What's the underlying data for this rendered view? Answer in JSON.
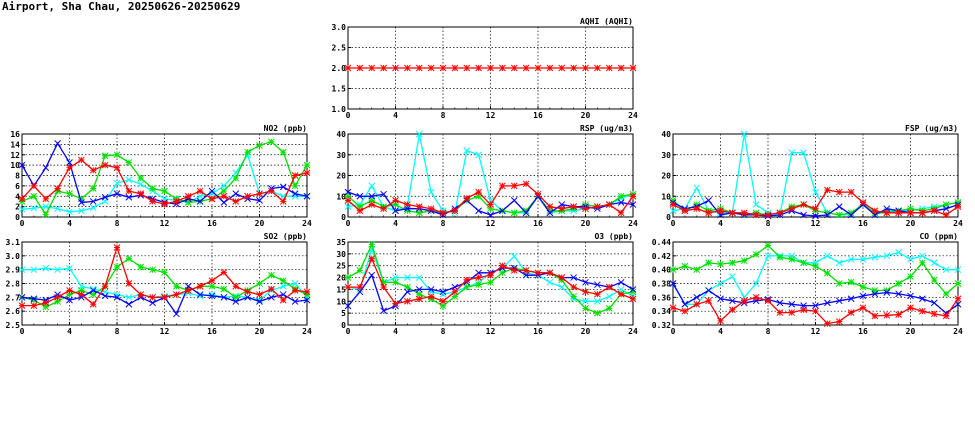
{
  "page_title": "Airport, Sha Chau, 20250626-20250629",
  "colors": {
    "cyan": "#00ffff",
    "green": "#00e000",
    "blue": "#0000ff",
    "red": "#ff0000",
    "darkred": "#800000"
  },
  "chart_data": [
    {
      "id": "aqhi",
      "type": "line",
      "title": "AQHI (AQHI)",
      "xlim": [
        0,
        24
      ],
      "x_ticks": [
        0,
        4,
        8,
        12,
        16,
        20,
        24
      ],
      "ylim": [
        1.0,
        3.0
      ],
      "y_ticks": [
        1.0,
        1.5,
        2.0,
        2.5,
        3.0
      ],
      "y_tick_labels": [
        "1.0",
        "1.5",
        "2.0",
        "2.5",
        "3.0"
      ],
      "grid": true,
      "series": [
        {
          "color": "red",
          "marker": "*",
          "values": [
            2,
            2,
            2,
            2,
            2,
            2,
            2,
            2,
            2,
            2,
            2,
            2,
            2,
            2,
            2,
            2,
            2,
            2,
            2,
            2,
            2,
            2,
            2,
            2,
            2
          ]
        }
      ]
    },
    {
      "id": "no2",
      "type": "line",
      "title": "NO2 (ppb)",
      "xlim": [
        0,
        24
      ],
      "x_ticks": [
        0,
        4,
        8,
        12,
        16,
        20,
        24
      ],
      "ylim": [
        0,
        16
      ],
      "y_ticks": [
        0,
        2,
        4,
        6,
        8,
        10,
        12,
        14,
        16
      ],
      "y_tick_labels": [
        "0",
        "2",
        "4",
        "6",
        "8",
        "10",
        "12",
        "14",
        "16"
      ],
      "grid": true,
      "series": [
        {
          "color": "cyan",
          "marker": "x",
          "values": [
            1.5,
            1.7,
            2.0,
            1.6,
            1.0,
            1.2,
            1.8,
            3.0,
            6.5,
            7.2,
            6.3,
            5.0,
            3.5,
            3.2,
            2.8,
            4.0,
            4.5,
            6.0,
            8.5,
            12.0,
            4.5,
            5.0,
            4.0,
            4.0,
            4.0
          ]
        },
        {
          "color": "green",
          "marker": "*",
          "values": [
            3.0,
            4.0,
            0.5,
            5.0,
            4.5,
            3.5,
            5.5,
            11.8,
            12.0,
            10.5,
            7.5,
            5.5,
            5.0,
            3.5,
            2.8,
            3.0,
            3.5,
            5.0,
            7.5,
            12.5,
            13.8,
            14.5,
            12.5,
            6.0,
            10.0
          ]
        },
        {
          "color": "blue",
          "marker": "x",
          "values": [
            10.0,
            6.0,
            9.5,
            14.2,
            10.5,
            2.8,
            3.0,
            3.8,
            4.5,
            3.8,
            4.2,
            3.5,
            2.8,
            2.5,
            3.5,
            3.0,
            5.0,
            2.8,
            4.5,
            3.5,
            3.2,
            5.5,
            5.8,
            4.5,
            4.0
          ]
        },
        {
          "color": "red",
          "marker": "*",
          "values": [
            3.5,
            6.0,
            3.5,
            5.5,
            9.5,
            11.0,
            9.0,
            10.0,
            9.5,
            5.0,
            4.5,
            3.0,
            2.5,
            3.0,
            4.0,
            5.0,
            3.5,
            4.0,
            3.0,
            4.0,
            4.5,
            5.0,
            3.0,
            8.0,
            8.5
          ]
        }
      ]
    },
    {
      "id": "rsp",
      "type": "line",
      "title": "RSP (ug/m3)",
      "xlim": [
        0,
        24
      ],
      "x_ticks": [
        0,
        4,
        8,
        12,
        16,
        20,
        24
      ],
      "ylim": [
        0,
        40
      ],
      "y_ticks": [
        0,
        10,
        20,
        30,
        40
      ],
      "y_tick_labels": [
        "0",
        "10",
        "20",
        "30",
        "40"
      ],
      "grid": true,
      "series": [
        {
          "color": "cyan",
          "marker": "x",
          "values": [
            5,
            6,
            15,
            5,
            3,
            5,
            40,
            12,
            3,
            2,
            32,
            30,
            8,
            3,
            2,
            2,
            10,
            2,
            3,
            3,
            4,
            5,
            6,
            9,
            11
          ]
        },
        {
          "color": "green",
          "marker": "*",
          "values": [
            10,
            5,
            8,
            5,
            6,
            3,
            2,
            3,
            2,
            3,
            8,
            10,
            4,
            3,
            2,
            3,
            10,
            3,
            3,
            4,
            6,
            5,
            6,
            10,
            11
          ]
        },
        {
          "color": "blue",
          "marker": "x",
          "values": [
            12,
            10,
            10,
            11,
            3,
            4,
            4,
            3,
            1,
            4,
            8,
            3,
            1,
            3,
            8,
            2,
            10,
            2,
            6,
            5,
            5,
            4,
            6,
            7,
            6
          ]
        },
        {
          "color": "red",
          "marker": "*",
          "values": [
            8,
            3,
            6,
            4,
            8,
            6,
            5,
            4,
            2,
            3,
            9,
            12,
            6,
            15,
            15,
            16,
            11,
            5,
            4,
            5,
            4,
            5,
            6,
            2,
            10
          ]
        }
      ]
    },
    {
      "id": "fsp",
      "type": "line",
      "title": "FSP (ug/m3)",
      "xlim": [
        0,
        24
      ],
      "x_ticks": [
        0,
        4,
        8,
        12,
        16,
        20,
        24
      ],
      "ylim": [
        0,
        40
      ],
      "y_ticks": [
        0,
        10,
        20,
        30,
        40
      ],
      "y_tick_labels": [
        "0",
        "10",
        "20",
        "30",
        "40"
      ],
      "grid": true,
      "series": [
        {
          "color": "cyan",
          "marker": "x",
          "values": [
            3,
            4,
            14,
            3,
            2,
            2,
            40,
            6,
            2,
            1,
            31,
            31,
            12,
            2,
            1,
            1,
            7,
            1,
            3,
            3,
            3,
            4,
            5,
            6,
            7
          ]
        },
        {
          "color": "green",
          "marker": "*",
          "values": [
            8,
            3,
            6,
            3,
            4,
            2,
            1,
            2,
            1,
            2,
            5,
            6,
            3,
            2,
            1,
            2,
            6,
            2,
            2,
            3,
            4,
            3,
            4,
            6,
            7
          ]
        },
        {
          "color": "blue",
          "marker": "x",
          "values": [
            7,
            4,
            5,
            8,
            1,
            2,
            1,
            1,
            0.5,
            1,
            3,
            1,
            0.5,
            1,
            5,
            1,
            6,
            1,
            4,
            3,
            2,
            2,
            3,
            4,
            6
          ]
        },
        {
          "color": "red",
          "marker": "*",
          "values": [
            6,
            3,
            4,
            2,
            3,
            2,
            2,
            1,
            1,
            2,
            4,
            6,
            4,
            13,
            12,
            12,
            7,
            3,
            2,
            2,
            2,
            2,
            3,
            1,
            5
          ]
        }
      ]
    },
    {
      "id": "so2",
      "type": "line",
      "title": "SO2 (ppb)",
      "xlim": [
        0,
        24
      ],
      "x_ticks": [
        0,
        4,
        8,
        12,
        16,
        20,
        24
      ],
      "ylim": [
        2.5,
        3.1
      ],
      "y_ticks": [
        2.5,
        2.6,
        2.7,
        2.8,
        2.9,
        3.0,
        3.1
      ],
      "y_tick_labels": [
        "2.5",
        "2.6",
        "2.7",
        "2.8",
        "2.9",
        "3.0",
        "3.1"
      ],
      "grid": true,
      "series": [
        {
          "color": "cyan",
          "marker": "x",
          "values": [
            2.9,
            2.9,
            2.91,
            2.9,
            2.91,
            2.78,
            2.76,
            2.74,
            2.72,
            2.7,
            2.72,
            2.7,
            2.71,
            2.72,
            2.73,
            2.71,
            2.72,
            2.7,
            2.71,
            2.7,
            2.68,
            2.75,
            2.78,
            2.8,
            2.7
          ]
        },
        {
          "color": "green",
          "marker": "*",
          "values": [
            2.7,
            2.68,
            2.63,
            2.67,
            2.72,
            2.75,
            2.72,
            2.78,
            2.92,
            2.98,
            2.92,
            2.9,
            2.88,
            2.78,
            2.75,
            2.78,
            2.78,
            2.76,
            2.7,
            2.75,
            2.8,
            2.86,
            2.82,
            2.76,
            2.72
          ]
        },
        {
          "color": "blue",
          "marker": "x",
          "values": [
            2.7,
            2.69,
            2.68,
            2.72,
            2.68,
            2.7,
            2.75,
            2.71,
            2.7,
            2.65,
            2.7,
            2.66,
            2.7,
            2.58,
            2.78,
            2.72,
            2.71,
            2.7,
            2.67,
            2.7,
            2.67,
            2.7,
            2.72,
            2.67,
            2.68
          ]
        },
        {
          "color": "red",
          "marker": "*",
          "values": [
            2.64,
            2.64,
            2.66,
            2.7,
            2.75,
            2.72,
            2.65,
            2.78,
            3.06,
            2.8,
            2.72,
            2.7,
            2.7,
            2.72,
            2.75,
            2.78,
            2.82,
            2.88,
            2.78,
            2.74,
            2.72,
            2.76,
            2.68,
            2.75,
            2.74
          ]
        }
      ]
    },
    {
      "id": "o3",
      "type": "line",
      "title": "O3 (ppb)",
      "xlim": [
        0,
        24
      ],
      "x_ticks": [
        0,
        4,
        8,
        12,
        16,
        20,
        24
      ],
      "ylim": [
        0,
        35
      ],
      "y_ticks": [
        0,
        5,
        10,
        15,
        20,
        25,
        30,
        35
      ],
      "y_tick_labels": [
        "0",
        "5",
        "10",
        "15",
        "20",
        "25",
        "30",
        "35"
      ],
      "grid": true,
      "series": [
        {
          "color": "cyan",
          "marker": "x",
          "values": [
            16,
            15,
            32,
            18,
            20,
            20,
            20,
            14,
            13,
            14,
            16,
            18,
            22,
            24,
            29,
            22,
            21,
            18,
            16,
            11,
            10,
            10,
            12,
            15,
            12
          ]
        },
        {
          "color": "green",
          "marker": "*",
          "values": [
            20,
            23,
            34,
            18,
            18,
            16,
            13,
            11,
            8,
            12,
            16,
            17,
            18,
            22,
            24,
            23,
            22,
            22,
            19,
            12,
            7,
            5,
            7,
            13,
            14
          ]
        },
        {
          "color": "blue",
          "marker": "x",
          "values": [
            8,
            14,
            21,
            6,
            8,
            14,
            15,
            15,
            14,
            16,
            18,
            22,
            22,
            24,
            24,
            21,
            21,
            22,
            20,
            20,
            18,
            17,
            16,
            18,
            15
          ]
        },
        {
          "color": "red",
          "marker": "*",
          "values": [
            16,
            16,
            28,
            16,
            9,
            10,
            11,
            12,
            10,
            14,
            19,
            20,
            21,
            25,
            23,
            23,
            22,
            22,
            20,
            16,
            14,
            13,
            16,
            13,
            11
          ]
        }
      ]
    },
    {
      "id": "co",
      "type": "line",
      "title": "CO (ppm)",
      "xlim": [
        0,
        24
      ],
      "x_ticks": [
        0,
        4,
        8,
        12,
        16,
        20,
        24
      ],
      "ylim": [
        0.32,
        0.44
      ],
      "y_ticks": [
        0.32,
        0.34,
        0.36,
        0.38,
        0.4,
        0.42,
        0.44
      ],
      "y_tick_labels": [
        "0.32",
        "0.34",
        "0.36",
        "0.38",
        "0.40",
        "0.42",
        "0.44"
      ],
      "grid": true,
      "series": [
        {
          "color": "cyan",
          "marker": "x",
          "values": [
            0.38,
            0.35,
            0.35,
            0.37,
            0.38,
            0.39,
            0.36,
            0.38,
            0.42,
            0.42,
            0.42,
            0.41,
            0.41,
            0.42,
            0.41,
            0.415,
            0.415,
            0.418,
            0.42,
            0.425,
            0.415,
            0.42,
            0.41,
            0.4,
            0.4
          ]
        },
        {
          "color": "green",
          "marker": "*",
          "values": [
            0.4,
            0.405,
            0.4,
            0.41,
            0.408,
            0.41,
            0.413,
            0.422,
            0.435,
            0.418,
            0.415,
            0.41,
            0.405,
            0.395,
            0.38,
            0.382,
            0.375,
            0.37,
            0.37,
            0.38,
            0.39,
            0.41,
            0.385,
            0.365,
            0.38
          ]
        },
        {
          "color": "blue",
          "marker": "x",
          "values": [
            0.38,
            0.35,
            0.36,
            0.37,
            0.358,
            0.355,
            0.352,
            0.355,
            0.357,
            0.352,
            0.35,
            0.348,
            0.348,
            0.352,
            0.355,
            0.358,
            0.362,
            0.365,
            0.367,
            0.365,
            0.362,
            0.358,
            0.352,
            0.337,
            0.35
          ]
        },
        {
          "color": "red",
          "marker": "*",
          "values": [
            0.345,
            0.34,
            0.35,
            0.355,
            0.326,
            0.342,
            0.355,
            0.36,
            0.355,
            0.338,
            0.338,
            0.342,
            0.34,
            0.322,
            0.325,
            0.338,
            0.345,
            0.333,
            0.334,
            0.335,
            0.345,
            0.34,
            0.336,
            0.333,
            0.358
          ]
        }
      ]
    }
  ]
}
